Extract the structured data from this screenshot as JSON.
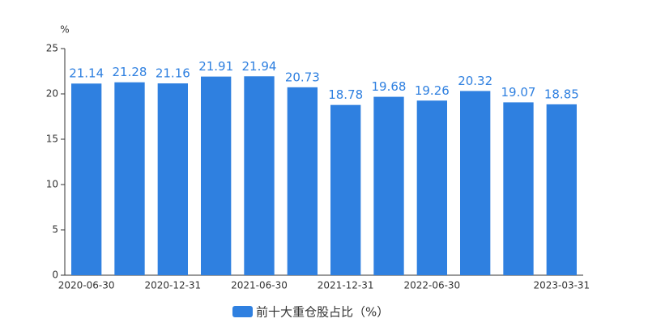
{
  "chart_data": {
    "type": "bar",
    "y_unit": "%",
    "categories": [
      "2020-06-30",
      null,
      "2020-12-31",
      null,
      "2021-06-30",
      null,
      "2021-12-31",
      null,
      "2022-06-30",
      null,
      null,
      "2023-03-31"
    ],
    "series": [
      {
        "name": "前十大重仓股占比（%）",
        "color": "#2f80e0",
        "values": [
          21.14,
          21.28,
          21.16,
          21.91,
          21.94,
          20.73,
          18.78,
          19.68,
          19.26,
          20.32,
          19.07,
          18.85
        ]
      }
    ],
    "ylim": [
      0,
      25
    ],
    "yticks": [
      0,
      5,
      10,
      15,
      20,
      25
    ],
    "grid": false,
    "legend": "bottom"
  }
}
